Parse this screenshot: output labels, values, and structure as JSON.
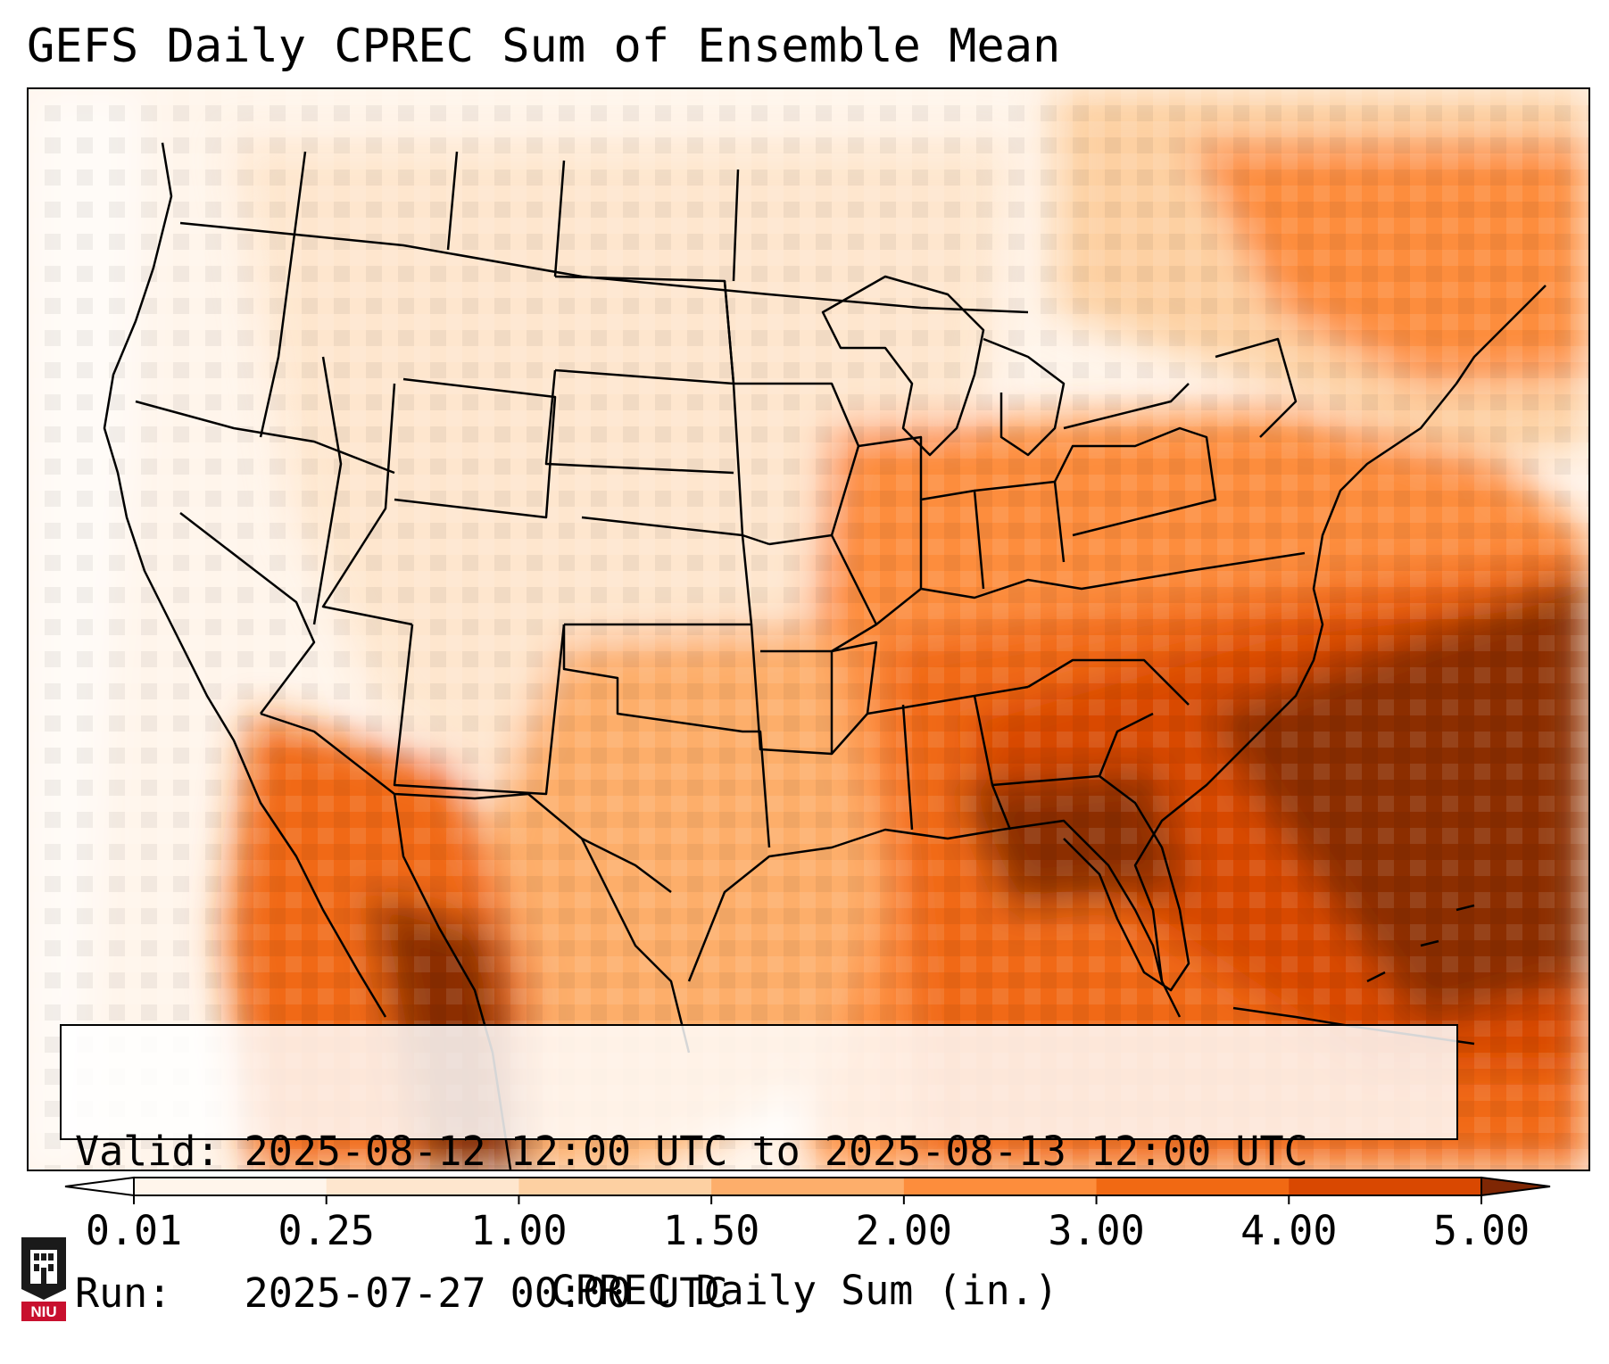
{
  "title": "GEFS Daily CPREC Sum of Ensemble Mean",
  "info": {
    "valid_line": "Valid: 2025-08-12 12:00 UTC to 2025-08-13 12:00 UTC",
    "run_line": "Run:   2025-07-27 00:00 UTC"
  },
  "colorbar": {
    "label": "CPREC Daily Sum (in.)",
    "ticks": [
      "0.01",
      "0.25",
      "1.00",
      "1.50",
      "2.00",
      "3.00",
      "4.00",
      "5.00"
    ],
    "colors": [
      "#fff5eb",
      "#fee6ce",
      "#fdd0a2",
      "#fdae6b",
      "#fd8d3c",
      "#f16913",
      "#d94801",
      "#8c2d04"
    ],
    "under_color": "#ffffff",
    "over_color": "#7f2704",
    "extend": "both"
  },
  "logo": {
    "text": "NIU",
    "colors": {
      "shield": "#1a1a1a",
      "banner": "#c8102e"
    }
  }
}
